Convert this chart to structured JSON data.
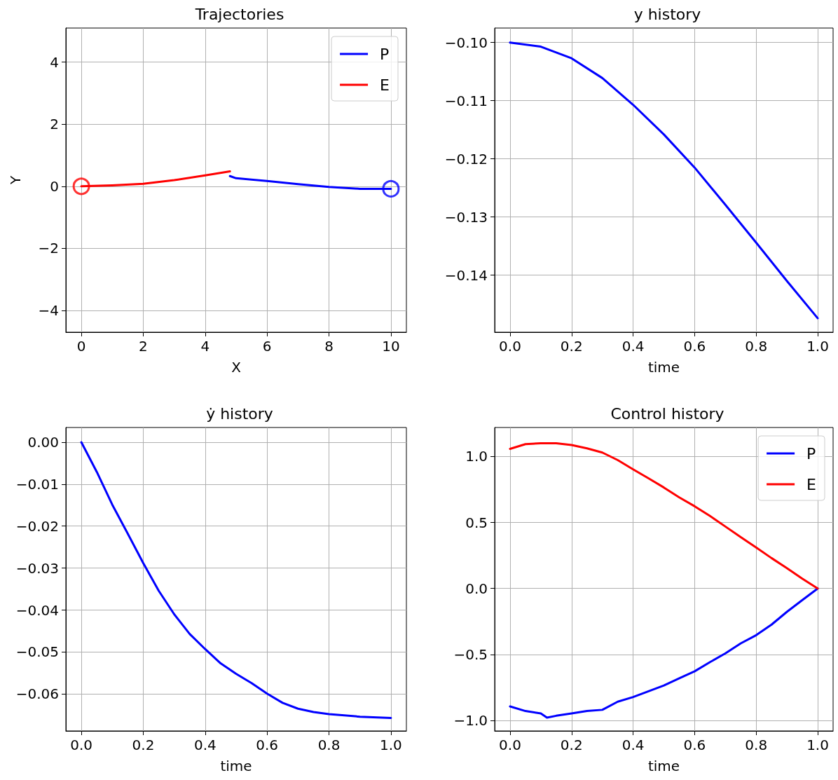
{
  "chart_data": [
    {
      "type": "line",
      "title": "Trajectories",
      "xlabel": "X",
      "ylabel": "Y",
      "xlim": [
        -0.5,
        10.5
      ],
      "ylim": [
        -4.7,
        5.1
      ],
      "xticks": [
        0,
        2,
        4,
        6,
        8,
        10
      ],
      "yticks": [
        {
          "value": -4,
          "label": "−4"
        },
        {
          "value": -2,
          "label": "−2"
        },
        0,
        2,
        4
      ],
      "grid": true,
      "legend": "top right",
      "series": [
        {
          "name": "P",
          "color": "#0000ff",
          "x": [
            10,
            9,
            8,
            7,
            6,
            5,
            4.8
          ],
          "values": [
            -0.08,
            -0.08,
            -0.02,
            0.07,
            0.17,
            0.26,
            0.33
          ]
        },
        {
          "name": "E",
          "color": "#ff0000",
          "x": [
            0,
            1,
            2,
            3,
            4,
            4.8
          ],
          "values": [
            0,
            0.03,
            0.08,
            0.2,
            0.35,
            0.48
          ]
        },
        {
          "type": "scatter",
          "marker": "circle",
          "color": "#ff0000",
          "x": [
            0
          ],
          "values": [
            0
          ]
        },
        {
          "type": "scatter",
          "marker": "circle",
          "color": "#0000ff",
          "x": [
            10
          ],
          "values": [
            -0.08
          ]
        }
      ]
    },
    {
      "type": "line",
      "title": "y history",
      "xlabel": "time",
      "xlim": [
        -0.05,
        1.05
      ],
      "ylim": [
        -0.1498,
        -0.0975
      ],
      "xticks": [
        {
          "value": 0,
          "label": "0.0"
        },
        {
          "value": 0.2,
          "label": "0.2"
        },
        {
          "value": 0.4,
          "label": "0.4"
        },
        {
          "value": 0.6,
          "label": "0.6"
        },
        {
          "value": 0.8,
          "label": "0.8"
        },
        {
          "value": 1,
          "label": "1.0"
        }
      ],
      "yticks": [
        {
          "value": -0.14,
          "label": "−0.14"
        },
        {
          "value": -0.13,
          "label": "−0.13"
        },
        {
          "value": -0.12,
          "label": "−0.12"
        },
        {
          "value": -0.11,
          "label": "−0.11"
        },
        {
          "value": -0.1,
          "label": "−0.10"
        }
      ],
      "grid": true,
      "x": [
        0,
        0.1,
        0.2,
        0.3,
        0.4,
        0.5,
        0.6,
        0.7,
        0.8,
        0.9,
        1.0
      ],
      "series": [
        {
          "color": "#0000ff",
          "values": [
            -0.1,
            -0.1007,
            -0.1027,
            -0.1061,
            -0.1107,
            -0.1158,
            -0.1215,
            -0.1279,
            -0.1344,
            -0.141,
            -0.1474
          ]
        }
      ]
    },
    {
      "type": "line",
      "title": "ẏ history",
      "xlabel": "time",
      "xlim": [
        -0.05,
        1.05
      ],
      "ylim": [
        -0.0688,
        0.0035
      ],
      "xticks": [
        {
          "value": 0,
          "label": "0.0"
        },
        {
          "value": 0.2,
          "label": "0.2"
        },
        {
          "value": 0.4,
          "label": "0.4"
        },
        {
          "value": 0.6,
          "label": "0.6"
        },
        {
          "value": 0.8,
          "label": "0.8"
        },
        {
          "value": 1,
          "label": "1.0"
        }
      ],
      "yticks": [
        {
          "value": -0.06,
          "label": "−0.06"
        },
        {
          "value": -0.05,
          "label": "−0.05"
        },
        {
          "value": -0.04,
          "label": "−0.04"
        },
        {
          "value": -0.03,
          "label": "−0.03"
        },
        {
          "value": -0.02,
          "label": "−0.02"
        },
        {
          "value": -0.01,
          "label": "−0.01"
        },
        {
          "value": 0,
          "label": "0.00"
        }
      ],
      "grid": true,
      "x": [
        0,
        0.05,
        0.1,
        0.15,
        0.2,
        0.25,
        0.3,
        0.35,
        0.4,
        0.45,
        0.5,
        0.55,
        0.6,
        0.65,
        0.7,
        0.75,
        0.8,
        0.9,
        1.0
      ],
      "series": [
        {
          "color": "#0000ff",
          "values": [
            0,
            -0.0071,
            -0.0149,
            -0.0218,
            -0.0288,
            -0.0354,
            -0.041,
            -0.0457,
            -0.0493,
            -0.0527,
            -0.0552,
            -0.0574,
            -0.0599,
            -0.0621,
            -0.0635,
            -0.0643,
            -0.0648,
            -0.0654,
            -0.0657
          ]
        }
      ]
    },
    {
      "type": "line",
      "title": "Control history",
      "xlabel": "time",
      "xlim": [
        -0.05,
        1.05
      ],
      "ylim": [
        -1.08,
        1.22
      ],
      "xticks": [
        {
          "value": 0,
          "label": "0.0"
        },
        {
          "value": 0.2,
          "label": "0.2"
        },
        {
          "value": 0.4,
          "label": "0.4"
        },
        {
          "value": 0.6,
          "label": "0.6"
        },
        {
          "value": 0.8,
          "label": "0.8"
        },
        {
          "value": 1,
          "label": "1.0"
        }
      ],
      "yticks": [
        {
          "value": -1,
          "label": "−1.0"
        },
        {
          "value": -0.5,
          "label": "−0.5"
        },
        {
          "value": 0,
          "label": "0.0"
        },
        {
          "value": 0.5,
          "label": "0.5"
        },
        {
          "value": 1,
          "label": "1.0"
        }
      ],
      "grid": true,
      "legend": "top right",
      "x": [
        0,
        0.05,
        0.1,
        0.12,
        0.15,
        0.2,
        0.25,
        0.3,
        0.35,
        0.4,
        0.45,
        0.5,
        0.55,
        0.6,
        0.65,
        0.7,
        0.75,
        0.8,
        0.85,
        0.9,
        0.95,
        1.0
      ],
      "series": [
        {
          "name": "P",
          "color": "#0000ff",
          "values": [
            -0.894,
            -0.929,
            -0.947,
            -0.979,
            -0.965,
            -0.947,
            -0.929,
            -0.92,
            -0.858,
            -0.823,
            -0.779,
            -0.735,
            -0.681,
            -0.628,
            -0.558,
            -0.492,
            -0.416,
            -0.354,
            -0.274,
            -0.177,
            -0.088,
            0
          ]
        },
        {
          "name": "E",
          "color": "#ff0000",
          "values": [
            1.058,
            1.094,
            1.1,
            1.1,
            1.1,
            1.087,
            1.062,
            1.03,
            0.973,
            0.903,
            0.835,
            0.765,
            0.69,
            0.623,
            0.549,
            0.469,
            0.389,
            0.31,
            0.23,
            0.154,
            0.074,
            0
          ]
        }
      ]
    }
  ]
}
